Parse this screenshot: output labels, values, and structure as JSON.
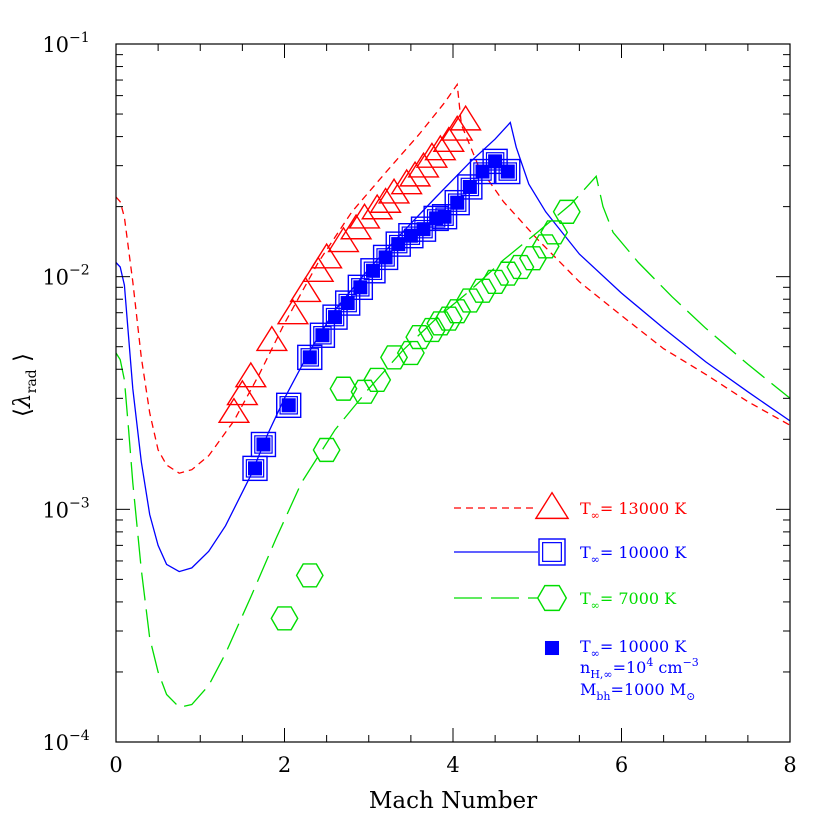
{
  "chart_data": {
    "type": "line",
    "xlabel": "Mach Number",
    "ylabel": "⟨λrad⟩",
    "ylabel_main": "λ",
    "ylabel_sub": "rad",
    "xlim": [
      0,
      8
    ],
    "ylim": [
      0.0001,
      0.1
    ],
    "yscale": "log",
    "grid": false,
    "legend_position": "bottom-right",
    "x_ticks": [
      0,
      2,
      4,
      6,
      8
    ],
    "x_tick_labels": [
      "0",
      "2",
      "4",
      "6",
      "8"
    ],
    "y_ticks": [
      0.0001,
      0.001,
      0.01,
      0.1
    ],
    "y_tick_labels": [
      {
        "base": "10",
        "exp": "−4"
      },
      {
        "base": "10",
        "exp": "−3"
      },
      {
        "base": "10",
        "exp": "−2"
      },
      {
        "base": "10",
        "exp": "−1"
      }
    ],
    "colors": {
      "t13000": "#ff0000",
      "t10000": "#0000ff",
      "t7000": "#00dd00",
      "axis": "#000000"
    },
    "lines": [
      {
        "key": "t13000",
        "color": "#ff0000",
        "dash": "7,5",
        "points": [
          [
            0,
            0.022
          ],
          [
            0.05,
            0.021
          ],
          [
            0.1,
            0.018
          ],
          [
            0.2,
            0.0095
          ],
          [
            0.3,
            0.0045
          ],
          [
            0.4,
            0.0026
          ],
          [
            0.5,
            0.0018
          ],
          [
            0.6,
            0.00155
          ],
          [
            0.75,
            0.00143
          ],
          [
            0.9,
            0.00148
          ],
          [
            1.1,
            0.0017
          ],
          [
            1.4,
            0.0024
          ],
          [
            1.7,
            0.0038
          ],
          [
            2.0,
            0.0063
          ],
          [
            2.4,
            0.0115
          ],
          [
            2.8,
            0.019
          ],
          [
            3.2,
            0.028
          ],
          [
            3.6,
            0.041
          ],
          [
            3.9,
            0.056
          ],
          [
            4.05,
            0.067
          ],
          [
            4.1,
            0.045
          ],
          [
            4.3,
            0.03
          ],
          [
            4.6,
            0.021
          ],
          [
            5.0,
            0.0145
          ],
          [
            5.5,
            0.0095
          ],
          [
            6.0,
            0.0068
          ],
          [
            6.5,
            0.0049
          ],
          [
            7.0,
            0.0038
          ],
          [
            7.5,
            0.0029
          ],
          [
            8.0,
            0.0023
          ]
        ]
      },
      {
        "key": "t10000",
        "color": "#0000ff",
        "dash": "",
        "points": [
          [
            0,
            0.0115
          ],
          [
            0.05,
            0.011
          ],
          [
            0.1,
            0.0092
          ],
          [
            0.15,
            0.0055
          ],
          [
            0.2,
            0.0033
          ],
          [
            0.3,
            0.0016
          ],
          [
            0.4,
            0.00095
          ],
          [
            0.5,
            0.0007
          ],
          [
            0.6,
            0.00058
          ],
          [
            0.75,
            0.00054
          ],
          [
            0.9,
            0.00056
          ],
          [
            1.1,
            0.00066
          ],
          [
            1.3,
            0.00085
          ],
          [
            1.6,
            0.0014
          ],
          [
            1.8,
            0.0021
          ],
          [
            2.0,
            0.003
          ],
          [
            2.3,
            0.0048
          ],
          [
            2.6,
            0.0072
          ],
          [
            3.0,
            0.0108
          ],
          [
            3.4,
            0.0155
          ],
          [
            3.8,
            0.022
          ],
          [
            4.2,
            0.031
          ],
          [
            4.5,
            0.039
          ],
          [
            4.68,
            0.046
          ],
          [
            4.75,
            0.036
          ],
          [
            4.9,
            0.025
          ],
          [
            5.1,
            0.019
          ],
          [
            5.5,
            0.0125
          ],
          [
            6.0,
            0.0085
          ],
          [
            6.5,
            0.006
          ],
          [
            7.0,
            0.0043
          ],
          [
            7.5,
            0.0032
          ],
          [
            8.0,
            0.0024
          ]
        ]
      },
      {
        "key": "t7000",
        "color": "#00dd00",
        "dash": "28,9",
        "points": [
          [
            0,
            0.0047
          ],
          [
            0.05,
            0.0044
          ],
          [
            0.1,
            0.0036
          ],
          [
            0.15,
            0.0022
          ],
          [
            0.2,
            0.0013
          ],
          [
            0.3,
            0.00055
          ],
          [
            0.4,
            0.00028
          ],
          [
            0.5,
            0.0002
          ],
          [
            0.6,
            0.00016
          ],
          [
            0.75,
            0.000141
          ],
          [
            0.9,
            0.000145
          ],
          [
            1.1,
            0.000175
          ],
          [
            1.3,
            0.00024
          ],
          [
            1.6,
            0.00042
          ],
          [
            1.9,
            0.00075
          ],
          [
            2.2,
            0.0013
          ],
          [
            2.6,
            0.0022
          ],
          [
            3.0,
            0.0033
          ],
          [
            3.4,
            0.0048
          ],
          [
            3.8,
            0.0066
          ],
          [
            4.2,
            0.0087
          ],
          [
            4.6,
            0.0118
          ],
          [
            5.0,
            0.0155
          ],
          [
            5.4,
            0.0205
          ],
          [
            5.7,
            0.027
          ],
          [
            5.78,
            0.02
          ],
          [
            5.9,
            0.0155
          ],
          [
            6.2,
            0.0115
          ],
          [
            6.6,
            0.0082
          ],
          [
            7.0,
            0.006
          ],
          [
            7.5,
            0.0042
          ],
          [
            8.0,
            0.003
          ]
        ]
      }
    ],
    "marker_series": [
      {
        "key": "t13000",
        "marker": "triangle",
        "color": "#ff0000",
        "points": [
          [
            1.4,
            0.0026
          ],
          [
            1.5,
            0.0031
          ],
          [
            1.6,
            0.0037
          ],
          [
            1.85,
            0.0053
          ],
          [
            2.1,
            0.0069
          ],
          [
            2.25,
            0.0086
          ],
          [
            2.4,
            0.0105
          ],
          [
            2.5,
            0.012
          ],
          [
            2.7,
            0.0141
          ],
          [
            2.85,
            0.016
          ],
          [
            2.95,
            0.0178
          ],
          [
            3.1,
            0.0195
          ],
          [
            3.2,
            0.0208
          ],
          [
            3.3,
            0.0228
          ],
          [
            3.45,
            0.025
          ],
          [
            3.55,
            0.027
          ],
          [
            3.65,
            0.0295
          ],
          [
            3.75,
            0.0325
          ],
          [
            3.85,
            0.035
          ],
          [
            3.95,
            0.038
          ],
          [
            4.05,
            0.0425
          ],
          [
            4.15,
            0.047
          ]
        ]
      },
      {
        "key": "t10000",
        "marker": "square",
        "color": "#0000ff",
        "points": [
          [
            1.65,
            0.0015
          ],
          [
            1.75,
            0.0019
          ],
          [
            2.05,
            0.0028
          ],
          [
            2.3,
            0.0045
          ],
          [
            2.45,
            0.0056
          ],
          [
            2.6,
            0.0067
          ],
          [
            2.75,
            0.0077
          ],
          [
            2.9,
            0.009
          ],
          [
            3.05,
            0.0106
          ],
          [
            3.2,
            0.0121
          ],
          [
            3.35,
            0.0138
          ],
          [
            3.5,
            0.015
          ],
          [
            3.65,
            0.016
          ],
          [
            3.8,
            0.0178
          ],
          [
            3.9,
            0.0181
          ],
          [
            4.05,
            0.0208
          ],
          [
            4.2,
            0.0243
          ],
          [
            4.35,
            0.0283
          ],
          [
            4.5,
            0.0313
          ],
          [
            4.65,
            0.0283
          ]
        ]
      },
      {
        "key": "t10000_dense",
        "marker": "filled-square",
        "color": "#0000ff",
        "points": [
          [
            1.65,
            0.0015
          ],
          [
            1.75,
            0.0019
          ],
          [
            2.05,
            0.0028
          ],
          [
            2.3,
            0.0045
          ],
          [
            2.45,
            0.0056
          ],
          [
            2.6,
            0.0067
          ],
          [
            2.75,
            0.0077
          ],
          [
            2.9,
            0.009
          ],
          [
            3.05,
            0.0106
          ],
          [
            3.2,
            0.0121
          ],
          [
            3.35,
            0.0138
          ],
          [
            3.5,
            0.015
          ],
          [
            3.65,
            0.016
          ],
          [
            3.8,
            0.0178
          ],
          [
            3.9,
            0.0181
          ],
          [
            4.05,
            0.0208
          ],
          [
            4.2,
            0.0243
          ],
          [
            4.35,
            0.0283
          ],
          [
            4.5,
            0.0313
          ],
          [
            4.65,
            0.0283
          ]
        ]
      },
      {
        "key": "t7000",
        "marker": "hexagon",
        "color": "#00dd00",
        "points": [
          [
            2.0,
            0.00034
          ],
          [
            2.3,
            0.00052
          ],
          [
            2.5,
            0.0018
          ],
          [
            2.7,
            0.0033
          ],
          [
            2.95,
            0.0032
          ],
          [
            3.1,
            0.0036
          ],
          [
            3.3,
            0.0045
          ],
          [
            3.5,
            0.0047
          ],
          [
            3.6,
            0.0055
          ],
          [
            3.75,
            0.0059
          ],
          [
            3.85,
            0.0063
          ],
          [
            3.95,
            0.0066
          ],
          [
            4.05,
            0.0071
          ],
          [
            4.2,
            0.0079
          ],
          [
            4.35,
            0.0087
          ],
          [
            4.5,
            0.0095
          ],
          [
            4.65,
            0.0103
          ],
          [
            4.8,
            0.011
          ],
          [
            4.95,
            0.012
          ],
          [
            5.1,
            0.0135
          ],
          [
            5.2,
            0.0155
          ],
          [
            5.35,
            0.019
          ]
        ]
      }
    ]
  },
  "legend": {
    "items": [
      {
        "key": "t13000",
        "color": "#ff0000",
        "dash": "7,5",
        "marker": "triangle",
        "text_main": "T",
        "text_sub": "∞",
        "text_rest": "= 13000 K"
      },
      {
        "key": "t10000",
        "color": "#0000ff",
        "dash": "",
        "marker": "square",
        "text_main": "T",
        "text_sub": "∞",
        "text_rest": "= 10000 K"
      },
      {
        "key": "t7000",
        "color": "#00dd00",
        "dash": "28,9",
        "marker": "hexagon",
        "text_main": "T",
        "text_sub": "∞",
        "text_rest": "= 7000 K"
      }
    ],
    "dense": {
      "color": "#0000ff",
      "line1": {
        "main": "T",
        "sub": "∞",
        "rest": "= 10000 K"
      },
      "line2": {
        "main": "n",
        "sub": "H,∞",
        "rest": "=10",
        "sup": "4",
        "rest2": " cm",
        "sup2": "−3"
      },
      "line3": {
        "main": "M",
        "sub": "bh",
        "rest": "=1000 M",
        "sub2": "⊙"
      }
    }
  }
}
